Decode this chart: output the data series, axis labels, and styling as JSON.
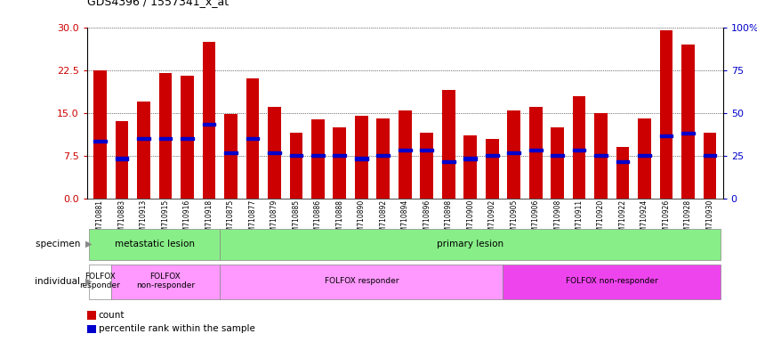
{
  "title": "GDS4396 / 1557341_x_at",
  "samples": [
    "GSM710881",
    "GSM710883",
    "GSM710913",
    "GSM710915",
    "GSM710916",
    "GSM710918",
    "GSM710875",
    "GSM710877",
    "GSM710879",
    "GSM710885",
    "GSM710886",
    "GSM710888",
    "GSM710890",
    "GSM710892",
    "GSM710894",
    "GSM710896",
    "GSM710898",
    "GSM710900",
    "GSM710902",
    "GSM710905",
    "GSM710906",
    "GSM710908",
    "GSM710911",
    "GSM710920",
    "GSM710922",
    "GSM710924",
    "GSM710926",
    "GSM710928",
    "GSM710930"
  ],
  "bar_heights": [
    22.5,
    13.5,
    17.0,
    22.0,
    21.5,
    27.5,
    14.8,
    21.0,
    16.0,
    11.5,
    13.8,
    12.5,
    14.5,
    14.0,
    15.5,
    11.5,
    19.0,
    11.0,
    10.5,
    15.5,
    16.0,
    12.5,
    18.0,
    15.0,
    9.0,
    14.0,
    29.5,
    27.0,
    11.5
  ],
  "blue_markers": [
    10.0,
    7.0,
    10.5,
    10.5,
    10.5,
    13.0,
    8.0,
    10.5,
    8.0,
    7.5,
    7.5,
    7.5,
    7.0,
    7.5,
    8.5,
    8.5,
    6.5,
    7.0,
    7.5,
    8.0,
    8.5,
    7.5,
    8.5,
    7.5,
    6.5,
    7.5,
    11.0,
    11.5,
    7.5
  ],
  "ylim_left": [
    0,
    30
  ],
  "ylim_right": [
    0,
    100
  ],
  "yticks_left": [
    0,
    7.5,
    15,
    22.5,
    30
  ],
  "yticks_right": [
    0,
    25,
    50,
    75,
    100
  ],
  "bar_color": "#cc0000",
  "blue_color": "#0000cc",
  "specimen_green": "#88ee88",
  "individual_pink_light": "#ff99ff",
  "individual_pink_dark": "#ee44ee",
  "individual_white": "#ffffff",
  "legend_count_color": "#cc0000",
  "legend_rank_color": "#0000cc"
}
